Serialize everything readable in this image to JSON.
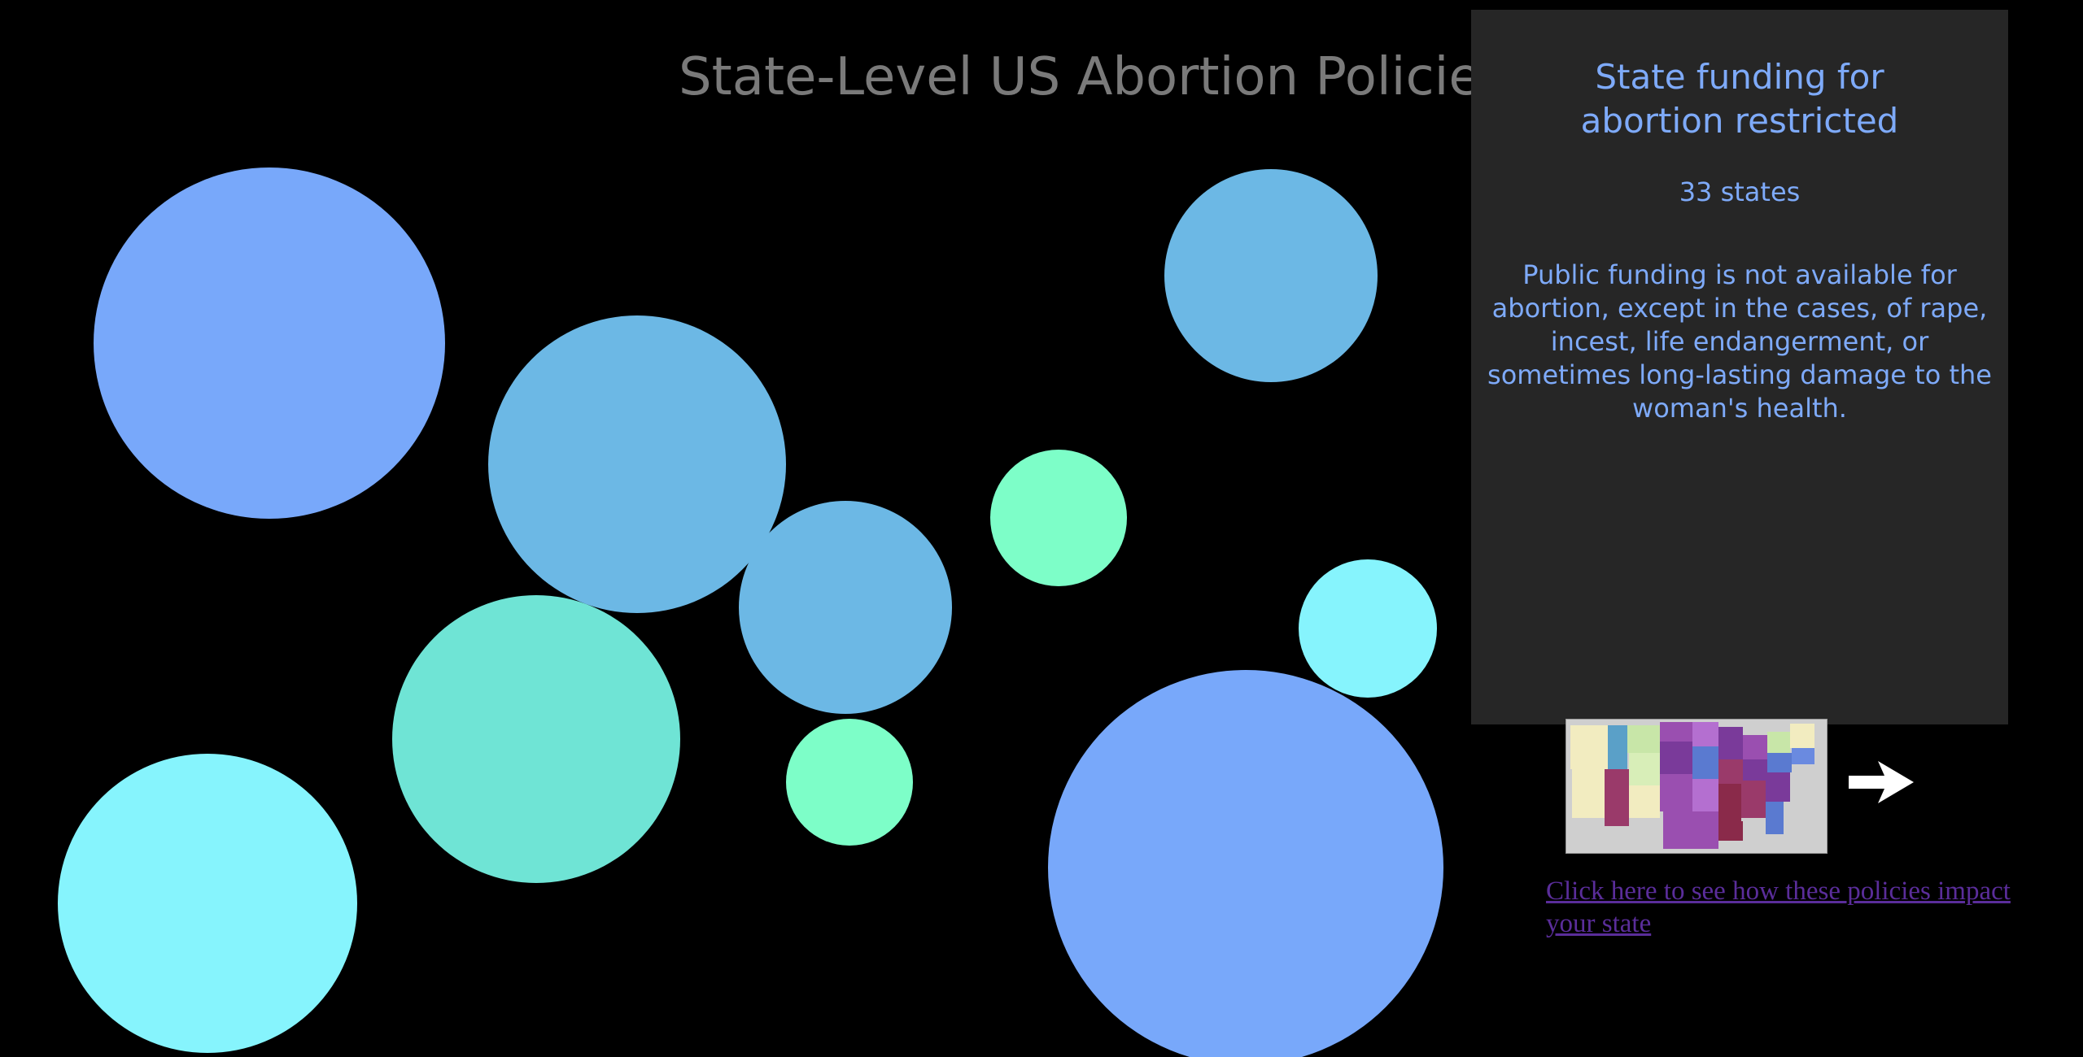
{
  "page": {
    "title": "State-Level US Abortion Policies"
  },
  "colors": {
    "background": "#000000",
    "panel": "#262626",
    "panel_text": "#7eaaf9",
    "title_text": "#7a7a7a",
    "link_text": "#5a2d9a",
    "bubble_blue": "#78a8fa",
    "bubble_sky": "#6cb8e5",
    "bubble_teal": "#6fe4d5",
    "bubble_mint": "#7dfec8",
    "bubble_cyan": "#86f4fd"
  },
  "bubbles": [
    {
      "name": "bubble-1",
      "color": "#78a8fa"
    },
    {
      "name": "bubble-2",
      "color": "#6cb8e5"
    },
    {
      "name": "bubble-3",
      "color": "#6cb8e5"
    },
    {
      "name": "bubble-4",
      "color": "#6cb8e5"
    },
    {
      "name": "bubble-5",
      "color": "#7dfec8"
    },
    {
      "name": "bubble-6",
      "color": "#86f4fd"
    },
    {
      "name": "bubble-7",
      "color": "#6fe4d5"
    },
    {
      "name": "bubble-8",
      "color": "#7dfec8"
    },
    {
      "name": "bubble-9",
      "color": "#86f4fd"
    },
    {
      "name": "bubble-10",
      "color": "#78a8fa"
    }
  ],
  "info_panel": {
    "title": "State funding for abortion restricted",
    "count": "33 states",
    "description": "Public funding is not available for abortion, except in the cases, of rape, incest, life endangerment, or sometimes long-lasting damage to the woman's health."
  },
  "map_thumbnail": {
    "icon": "us-map-thumbnail"
  },
  "arrow": {
    "icon": "arrow-right-icon"
  },
  "map_link": {
    "text": "Click here to see how these policies impact your state"
  }
}
